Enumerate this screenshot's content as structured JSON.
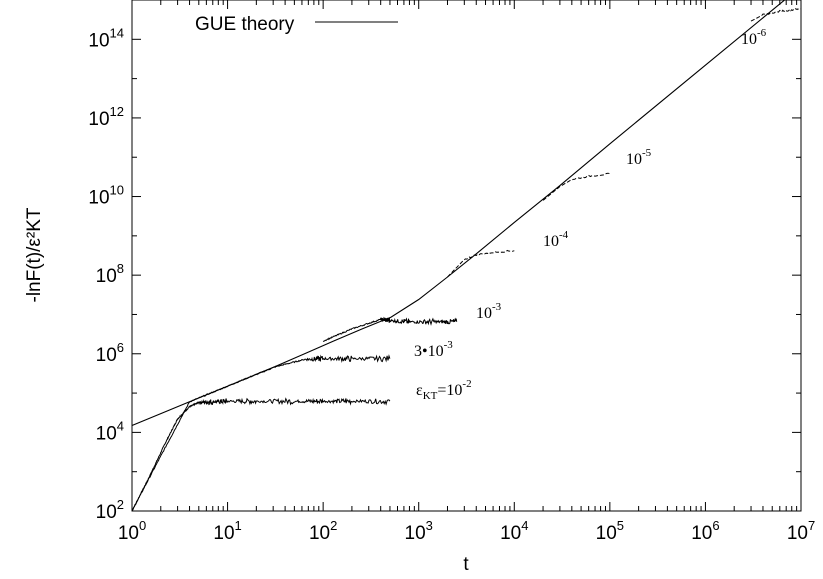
{
  "chart_data": {
    "type": "line",
    "xscale": "log",
    "yscale": "log",
    "xlim": [
      1,
      10000000
    ],
    "ylim": [
      100,
      1000000000000000
    ],
    "xlabel": "t",
    "ylabel": "-lnF(t)/ε²KT",
    "x_ticks": [
      {
        "base": "10",
        "exp": "0"
      },
      {
        "base": "10",
        "exp": "1"
      },
      {
        "base": "10",
        "exp": "2"
      },
      {
        "base": "10",
        "exp": "3"
      },
      {
        "base": "10",
        "exp": "4"
      },
      {
        "base": "10",
        "exp": "5"
      },
      {
        "base": "10",
        "exp": "6"
      },
      {
        "base": "10",
        "exp": "7"
      }
    ],
    "y_ticks": [
      {
        "base": "10",
        "exp": "2"
      },
      {
        "base": "10",
        "exp": "4"
      },
      {
        "base": "10",
        "exp": "6"
      },
      {
        "base": "10",
        "exp": "8"
      },
      {
        "base": "10",
        "exp": "10"
      },
      {
        "base": "10",
        "exp": "12"
      },
      {
        "base": "10",
        "exp": "14"
      }
    ],
    "legend": {
      "position": "top-left",
      "label": "GUE theory"
    },
    "grid": false,
    "theory": {
      "name": "GUE theory",
      "x": [
        1,
        2,
        4,
        8,
        16,
        32,
        64,
        128,
        256,
        512,
        1000,
        2000,
        4000,
        10000,
        30000,
        100000,
        1000000,
        10000000
      ],
      "y": [
        15000,
        30000,
        60000,
        120000,
        240000,
        480000,
        1000000,
        2100000,
        4300000,
        8500000,
        24000000,
        90000000,
        350000000,
        2200000000,
        19000000000,
        220000000000,
        22000000000000,
        2200000000000000
      ]
    },
    "series": [
      {
        "label_prefix": "ε",
        "label_sub": "KT",
        "label_mid": "=10",
        "label_sup": "-2",
        "style": "noisy",
        "x": [
          1,
          1.5,
          2.2,
          3,
          4,
          5,
          7,
          10,
          20,
          50,
          100,
          200,
          500
        ],
        "y": [
          100,
          700,
          5000,
          22000,
          45000,
          58000,
          60000,
          62000,
          62000,
          62000,
          62000,
          62000,
          62000
        ]
      },
      {
        "label_prefix": "",
        "label_sub": "",
        "label_mid": "3•10",
        "label_sup": "-3",
        "style": "noisy",
        "x": [
          1,
          2,
          4,
          8,
          16,
          32,
          64,
          100,
          200,
          500
        ],
        "y": [
          100,
          2500,
          60000,
          120000,
          240000,
          470000,
          720000,
          750000,
          750000,
          750000
        ]
      },
      {
        "label_prefix": "",
        "label_sub": "",
        "label_mid": "10",
        "label_sup": "-3",
        "style": "noisy",
        "x": [
          100,
          200,
          400,
          500,
          800,
          1500,
          2500
        ],
        "y": [
          2100000,
          4300000,
          7500000,
          7000000,
          6500000,
          6500000,
          6500000
        ]
      },
      {
        "label_prefix": "",
        "label_sub": "",
        "label_mid": "10",
        "label_sup": "-4",
        "style": "dashed",
        "x": [
          2000,
          3000,
          4000,
          6000,
          10000
        ],
        "y": [
          90000000,
          250000000,
          330000000,
          380000000,
          420000000
        ]
      },
      {
        "label_prefix": "",
        "label_sub": "",
        "label_mid": "10",
        "label_sup": "-5",
        "style": "dashed",
        "x": [
          20000,
          30000,
          40000,
          60000,
          100000
        ],
        "y": [
          8000000000,
          18000000000,
          27000000000,
          33000000000,
          38000000000
        ]
      },
      {
        "label_prefix": "",
        "label_sub": "",
        "label_mid": "10",
        "label_sup": "-6",
        "style": "dashed",
        "x": [
          3000000,
          4000000,
          6000000,
          8000000,
          10000000
        ],
        "y": [
          290000000000000,
          420000000000000,
          520000000000000,
          560000000000000,
          590000000000000
        ]
      }
    ]
  }
}
